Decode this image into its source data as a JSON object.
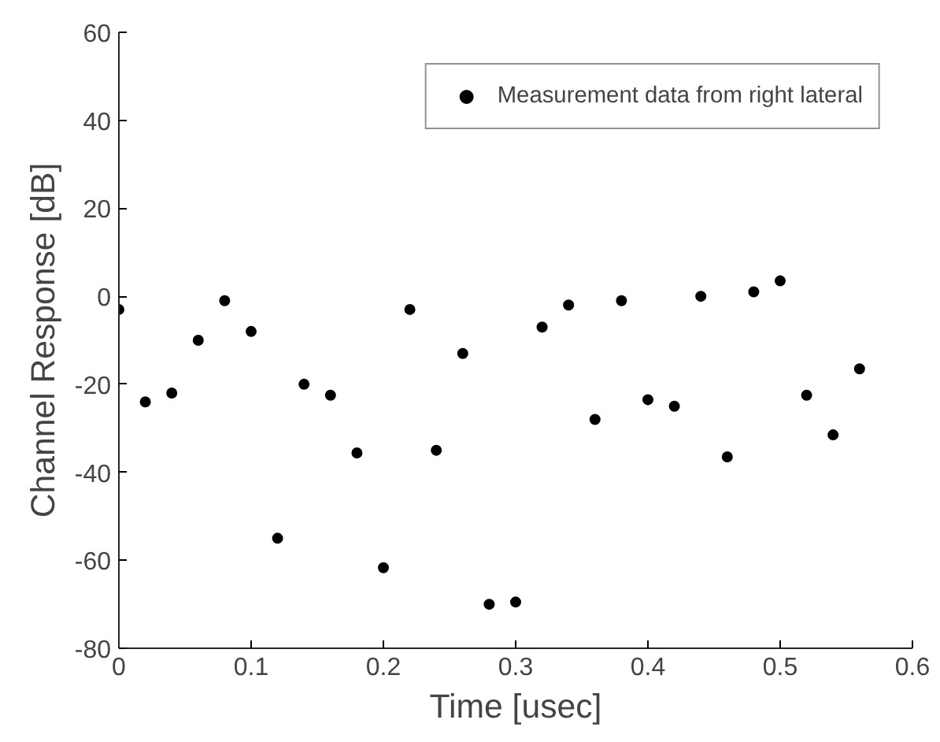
{
  "chart_data": {
    "type": "scatter",
    "xlabel": "Time [usec]",
    "ylabel": "Channel Response [dB]",
    "x": [
      0,
      0.02,
      0.04,
      0.06,
      0.08,
      0.1,
      0.12,
      0.14,
      0.16,
      0.18,
      0.2,
      0.22,
      0.24,
      0.26,
      0.28,
      0.3,
      0.32,
      0.34,
      0.36,
      0.38,
      0.4,
      0.42,
      0.44,
      0.46,
      0.48,
      0.5,
      0.52,
      0.54,
      0.56
    ],
    "series": [
      {
        "name": "Measurement data from right lateral",
        "color": "#000000",
        "values": [
          -3,
          -24,
          -22,
          -10,
          -1,
          -8,
          -55,
          -20,
          -22.5,
          -35.6,
          -61.7,
          -3,
          -35,
          -13,
          -70,
          -69.5,
          -7,
          -2,
          -28,
          -1,
          -23.5,
          -25,
          0,
          -36.5,
          1,
          3.5,
          -22.5,
          -31.5,
          -16.5
        ]
      }
    ],
    "xlim": [
      0,
      0.6
    ],
    "xticks": [
      0,
      0.1,
      0.2,
      0.3,
      0.4,
      0.5,
      0.6
    ],
    "ylim": [
      -80,
      60
    ],
    "yticks": [
      -80,
      -60,
      -40,
      -20,
      0,
      20,
      40,
      60
    ],
    "marker": "circle",
    "legend": "top right",
    "grid": false
  }
}
